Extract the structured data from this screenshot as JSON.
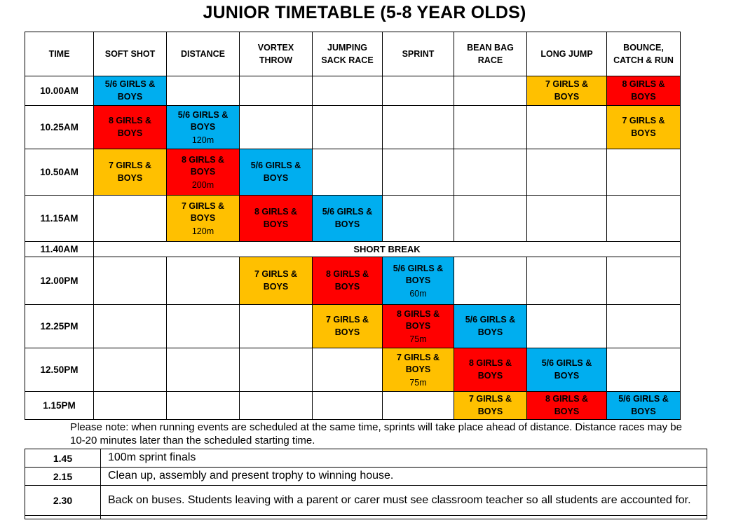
{
  "title": "JUNIOR TIMETABLE (5-8 YEAR OLDS)",
  "legend_colors": {
    "blue": "#00AEEF",
    "red": "#FF0000",
    "yellow": "#FFC000"
  },
  "timetable": {
    "columns": [
      "TIME",
      "SOFT SHOT",
      "DISTANCE",
      "VORTEX THROW",
      "JUMPING SACK RACE",
      "SPRINT",
      "BEAN BAG RACE",
      "LONG JUMP",
      "BOUNCE, CATCH & RUN"
    ],
    "rows": [
      {
        "time": "10.00AM",
        "cells": [
          {
            "color": "blue",
            "label": "5/6 GIRLS & BOYS"
          },
          null,
          null,
          null,
          null,
          null,
          {
            "color": "yellow",
            "label": "7 GIRLS & BOYS"
          },
          {
            "color": "red",
            "label": "8 GIRLS & BOYS"
          }
        ]
      },
      {
        "time": "10.25AM",
        "cells": [
          {
            "color": "red",
            "label": "8 GIRLS & BOYS"
          },
          {
            "color": "blue",
            "label": "5/6 GIRLS & BOYS",
            "note": "120m"
          },
          null,
          null,
          null,
          null,
          null,
          {
            "color": "yellow",
            "label": "7 GIRLS & BOYS"
          }
        ]
      },
      {
        "time": "10.50AM",
        "cells": [
          {
            "color": "yellow",
            "label": "7 GIRLS & BOYS"
          },
          {
            "color": "red",
            "label": "8 GIRLS & BOYS",
            "note": "200m"
          },
          {
            "color": "blue",
            "label": "5/6 GIRLS & BOYS"
          },
          null,
          null,
          null,
          null,
          null
        ]
      },
      {
        "time": "11.15AM",
        "cells": [
          null,
          {
            "color": "yellow",
            "label": "7 GIRLS & BOYS",
            "note": "120m"
          },
          {
            "color": "red",
            "label": "8 GIRLS & BOYS"
          },
          {
            "color": "blue",
            "label": "5/6 GIRLS & BOYS"
          },
          null,
          null,
          null,
          null
        ]
      },
      {
        "time": "11.40AM",
        "break_label": "SHORT BREAK"
      },
      {
        "time": "12.00PM",
        "cells": [
          null,
          null,
          {
            "color": "yellow",
            "label": "7 GIRLS & BOYS"
          },
          {
            "color": "red",
            "label": "8 GIRLS & BOYS"
          },
          {
            "color": "blue",
            "label": "5/6 GIRLS & BOYS",
            "note": "60m"
          },
          null,
          null,
          null
        ]
      },
      {
        "time": "12.25PM",
        "cells": [
          null,
          null,
          null,
          {
            "color": "yellow",
            "label": "7 GIRLS & BOYS"
          },
          {
            "color": "red",
            "label": "8 GIRLS & BOYS",
            "note": "75m"
          },
          {
            "color": "blue",
            "label": "5/6 GIRLS & BOYS"
          },
          null,
          null
        ]
      },
      {
        "time": "12.50PM",
        "cells": [
          null,
          null,
          null,
          null,
          {
            "color": "yellow",
            "label": "7 GIRLS & BOYS",
            "note": "75m"
          },
          {
            "color": "red",
            "label": "8 GIRLS & BOYS"
          },
          {
            "color": "blue",
            "label": "5/6 GIRLS & BOYS"
          },
          null
        ]
      },
      {
        "time": "1.15PM",
        "cells": [
          null,
          null,
          null,
          null,
          null,
          {
            "color": "yellow",
            "label": "7 GIRLS & BOYS"
          },
          {
            "color": "red",
            "label": "8 GIRLS & BOYS"
          },
          {
            "color": "blue",
            "label": "5/6 GIRLS & BOYS"
          }
        ]
      }
    ]
  },
  "note": "Please note: when running events are scheduled at the same time, sprints will take place ahead of distance.  Distance races may be 10-20 minutes later than the scheduled starting time.",
  "afternoon_schedule": {
    "rows": [
      {
        "time": "1.45",
        "description": "100m sprint finals"
      },
      {
        "time": "2.15",
        "description": "Clean up, assembly and present trophy to winning house."
      },
      {
        "time": "2.30",
        "description": "Back on buses. Students leaving with a parent or carer must see classroom teacher so all students are accounted for."
      }
    ]
  }
}
